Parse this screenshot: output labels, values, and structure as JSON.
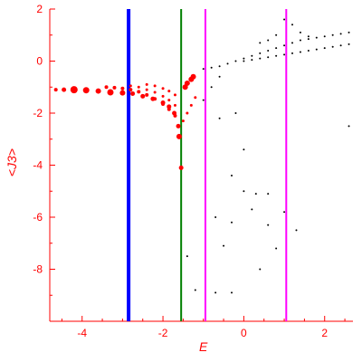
{
  "colors": {
    "axis": "#ff0000",
    "red_points": "#ff0000",
    "black_points": "#000000",
    "blue_line": "#0000ff",
    "green_line": "#008000",
    "magenta_line": "#ff00ff"
  },
  "chart_data": {
    "type": "scatter",
    "title": "",
    "xlabel": "E",
    "ylabel": "<J3>",
    "xlim": [
      -4.8,
      2.7
    ],
    "ylim": [
      -10,
      2
    ],
    "x_ticks": [
      -4,
      -2,
      0,
      2
    ],
    "y_ticks": [
      2,
      0,
      -2,
      -4,
      -6,
      -8
    ],
    "grid": false,
    "vertical_lines": [
      {
        "x": -2.85,
        "color": "#0000ff"
      },
      {
        "x": -1.55,
        "color": "#008000"
      },
      {
        "x": -0.95,
        "color": "#ff00ff"
      },
      {
        "x": 1.05,
        "color": "#ff00ff"
      }
    ],
    "series": [
      {
        "color": "#ff0000",
        "points": [
          [
            -4.65,
            -1.1,
            2
          ],
          [
            -4.45,
            -1.1,
            2.5
          ],
          [
            -4.2,
            -1.1,
            4
          ],
          [
            -3.9,
            -1.12,
            3.5
          ],
          [
            -3.6,
            -1.15,
            3
          ],
          [
            -3.3,
            -1.2,
            3.5
          ],
          [
            -3.0,
            -1.22,
            3
          ],
          [
            -2.75,
            -1.25,
            2.5
          ],
          [
            -2.5,
            -1.35,
            2.5
          ],
          [
            -2.25,
            -1.45,
            2.5
          ],
          [
            -2.0,
            -1.6,
            2.5
          ],
          [
            -1.85,
            -1.75,
            2.5
          ],
          [
            -1.72,
            -2.0,
            2.5
          ],
          [
            -1.62,
            -2.5,
            2.5
          ],
          [
            -1.6,
            -2.9,
            3
          ],
          [
            -3.4,
            -1.0,
            2
          ],
          [
            -3.2,
            -1.02,
            2
          ],
          [
            -3.0,
            -1.05,
            2
          ],
          [
            -2.8,
            -1.1,
            2
          ],
          [
            -2.6,
            -1.18,
            2
          ],
          [
            -2.4,
            -1.3,
            2
          ],
          [
            -2.2,
            -1.45,
            2
          ],
          [
            -2.0,
            -1.65,
            2
          ],
          [
            -1.85,
            -1.85,
            2
          ],
          [
            -1.7,
            -2.1,
            2
          ],
          [
            -2.8,
            -0.95,
            1.5
          ],
          [
            -2.6,
            -1.0,
            1.5
          ],
          [
            -2.4,
            -1.1,
            1.5
          ],
          [
            -2.2,
            -1.2,
            1.5
          ],
          [
            -2.0,
            -1.35,
            1.5
          ],
          [
            -1.85,
            -1.5,
            1.5
          ],
          [
            -1.7,
            -1.7,
            1.5
          ],
          [
            -2.4,
            -0.9,
            1.5
          ],
          [
            -2.2,
            -0.95,
            1.5
          ],
          [
            -2.0,
            -1.05,
            1.5
          ],
          [
            -1.85,
            -1.15,
            1.5
          ],
          [
            -1.7,
            -1.3,
            1.5
          ],
          [
            -1.45,
            -1.0,
            3
          ],
          [
            -1.4,
            -0.85,
            3
          ],
          [
            -1.3,
            -0.7,
            3
          ],
          [
            -1.25,
            -0.6,
            3
          ],
          [
            -1.5,
            -2.3,
            1.5
          ],
          [
            -1.4,
            -2.0,
            1.5
          ],
          [
            -1.3,
            -1.7,
            1.5
          ],
          [
            -1.2,
            -1.4,
            1.5
          ],
          [
            -1.55,
            -4.1,
            2.5
          ]
        ]
      },
      {
        "color": "#000000",
        "points": [
          [
            -1.0,
            -0.3,
            1
          ],
          [
            -0.8,
            -0.25,
            1
          ],
          [
            -0.6,
            -0.2,
            1
          ],
          [
            -0.4,
            -0.1,
            1
          ],
          [
            -0.2,
            0.0,
            1
          ],
          [
            0.0,
            0.1,
            1
          ],
          [
            0.2,
            0.2,
            1
          ],
          [
            0.4,
            0.3,
            1
          ],
          [
            0.6,
            0.4,
            1
          ],
          [
            0.8,
            0.5,
            1
          ],
          [
            1.0,
            0.6,
            1
          ],
          [
            1.2,
            0.7,
            1
          ],
          [
            1.4,
            0.8,
            1
          ],
          [
            1.6,
            0.85,
            1
          ],
          [
            1.8,
            0.9,
            1
          ],
          [
            2.0,
            0.95,
            1
          ],
          [
            2.2,
            1.0,
            1
          ],
          [
            2.4,
            1.05,
            1
          ],
          [
            2.6,
            1.1,
            1
          ],
          [
            0.0,
            0.0,
            1
          ],
          [
            0.2,
            0.05,
            1
          ],
          [
            0.4,
            0.1,
            1
          ],
          [
            0.6,
            0.15,
            1
          ],
          [
            0.8,
            0.2,
            1
          ],
          [
            1.0,
            0.25,
            1
          ],
          [
            1.2,
            0.3,
            1
          ],
          [
            1.4,
            0.35,
            1
          ],
          [
            1.6,
            0.4,
            1
          ],
          [
            1.8,
            0.45,
            1
          ],
          [
            2.0,
            0.5,
            1
          ],
          [
            2.2,
            0.55,
            1
          ],
          [
            2.4,
            0.6,
            1
          ],
          [
            2.6,
            0.65,
            1
          ],
          [
            1.0,
            1.6,
            1
          ],
          [
            1.2,
            1.4,
            1
          ],
          [
            1.4,
            1.1,
            1
          ],
          [
            1.6,
            0.95,
            1
          ],
          [
            0.8,
            1.0,
            1
          ],
          [
            0.6,
            0.8,
            1
          ],
          [
            0.4,
            0.7,
            1
          ],
          [
            -0.6,
            -0.6,
            1
          ],
          [
            -0.8,
            -1.0,
            1
          ],
          [
            -1.0,
            -1.5,
            1
          ],
          [
            -0.6,
            -2.2,
            1
          ],
          [
            -0.2,
            -2.0,
            1
          ],
          [
            0.0,
            -3.4,
            1
          ],
          [
            -0.3,
            -4.4,
            1
          ],
          [
            0.0,
            -5.0,
            1
          ],
          [
            0.3,
            -5.1,
            1
          ],
          [
            0.6,
            -5.1,
            1
          ],
          [
            0.2,
            -5.7,
            1
          ],
          [
            -0.3,
            -6.2,
            1
          ],
          [
            -0.7,
            -6.0,
            1
          ],
          [
            -0.5,
            -7.1,
            1
          ],
          [
            0.6,
            -6.3,
            1
          ],
          [
            0.8,
            -7.2,
            1
          ],
          [
            1.0,
            -5.8,
            1
          ],
          [
            1.3,
            -6.5,
            1
          ],
          [
            -1.4,
            -7.5,
            1
          ],
          [
            -1.2,
            -8.8,
            1
          ],
          [
            -0.7,
            -8.9,
            1
          ],
          [
            -0.3,
            -8.9,
            1
          ],
          [
            0.4,
            -8.0,
            1
          ],
          [
            2.6,
            -2.5,
            1
          ]
        ]
      }
    ]
  }
}
